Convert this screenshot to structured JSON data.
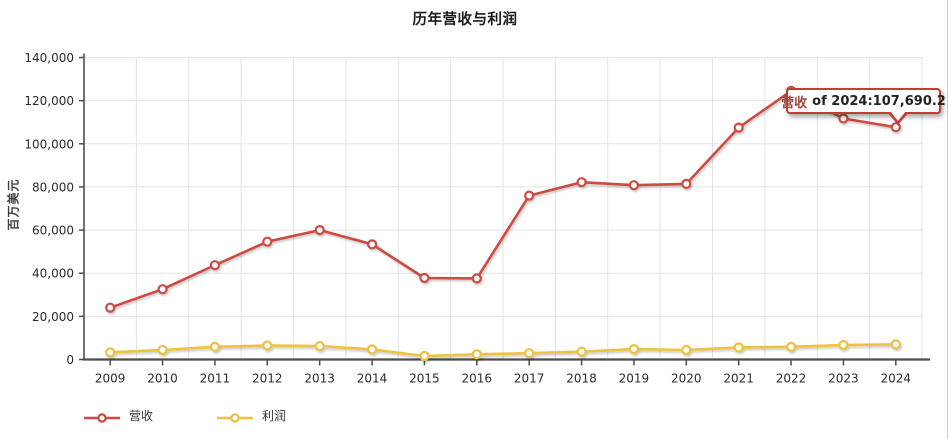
{
  "chart_data": {
    "type": "line",
    "title": "历年营收与利润",
    "ylabel": "百万美元",
    "xlabel": "",
    "categories": [
      "2009",
      "2010",
      "2011",
      "2012",
      "2013",
      "2014",
      "2015",
      "2016",
      "2017",
      "2018",
      "2019",
      "2020",
      "2021",
      "2022",
      "2023",
      "2024"
    ],
    "series": [
      {
        "name": "营收",
        "color": "#cb4b43",
        "values": [
          24000,
          32600,
          43700,
          54600,
          60000,
          53400,
          37800,
          37600,
          76000,
          82200,
          80800,
          81400,
          107500,
          124500,
          111700,
          107690.2
        ]
      },
      {
        "name": "利润",
        "color": "#edc240",
        "values": [
          3300,
          4400,
          5900,
          6500,
          6200,
          4700,
          1600,
          2400,
          2900,
          3600,
          4800,
          4400,
          5600,
          5900,
          6700,
          7000
        ]
      }
    ],
    "ylim": [
      0,
      140000
    ],
    "ytick_step": 20000,
    "grid": true,
    "legend_position": "bottom-left"
  },
  "tooltip": {
    "series_label": "营收",
    "value_text": "of 2024:107,690.2"
  },
  "legend": {
    "items": [
      {
        "label": "营收",
        "color": "#cb4b43"
      },
      {
        "label": "利润",
        "color": "#edc240"
      }
    ]
  },
  "colors": {
    "grid_line": "#e3e3e3",
    "axis_line": "#4d4d4d",
    "tick_text": "#2b2b2b",
    "tooltip_border": "#bf3f34"
  }
}
